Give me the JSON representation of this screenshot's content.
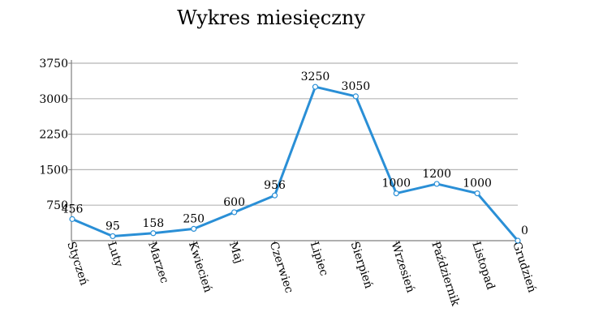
{
  "chart_data": {
    "type": "line",
    "title": "Wykres miesięczny",
    "xlabel": "",
    "ylabel": "",
    "categories": [
      "Styczeń",
      "Luty",
      "Marzec",
      "Kwiecień",
      "Maj",
      "Czerwiec",
      "Lipiec",
      "Sierpień",
      "Wrzesień",
      "Październik",
      "Listopad",
      "Grudzień"
    ],
    "series": [
      {
        "values": [
          456,
          95,
          158,
          250,
          600,
          956,
          3250,
          3050,
          1000,
          1200,
          1000,
          0
        ]
      }
    ],
    "yticks": [
      "750",
      "1500",
      "2250",
      "3000",
      "3750"
    ],
    "ylim": [
      0,
      3750
    ],
    "grid": true,
    "colors": {
      "line": "#2a8fd6",
      "grid": "#b5b5b5",
      "axis": "#7f7f7f"
    }
  }
}
